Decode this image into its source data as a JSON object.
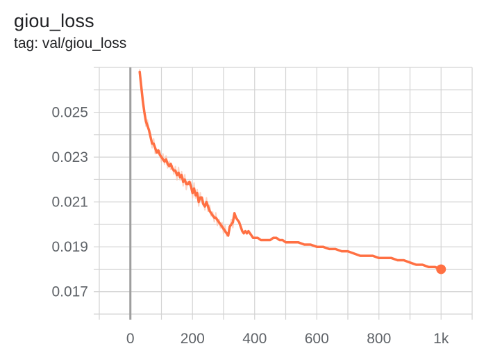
{
  "header": {
    "title": "giou_loss",
    "subtitle": "tag: val/giou_loss"
  },
  "colors": {
    "series": "#ff7043",
    "series_raw": "#f9c2ad",
    "grid": "#d3d3d3",
    "zero_line": "#9e9e9e",
    "tick_text": "#5f6368"
  },
  "chart_data": {
    "type": "line",
    "title": "giou_loss",
    "subtitle": "tag: val/giou_loss",
    "xlabel": "",
    "ylabel": "",
    "xlim": [
      -100,
      1100
    ],
    "ylim": [
      0.016,
      0.027
    ],
    "grid": true,
    "legend": "none",
    "x_ticks": [
      0,
      200,
      400,
      600,
      800,
      1000
    ],
    "x_tick_labels": [
      "0",
      "200",
      "400",
      "600",
      "800",
      "1k"
    ],
    "y_ticks": [
      0.017,
      0.019,
      0.021,
      0.023,
      0.025
    ],
    "y_tick_labels": [
      "0.017",
      "0.019",
      "0.021",
      "0.023",
      "0.025"
    ],
    "series": [
      {
        "x": [
          30,
          40,
          45,
          50,
          55,
          60,
          65,
          70,
          75,
          80,
          85,
          90,
          95,
          100,
          105,
          110,
          115,
          120,
          125,
          130,
          135,
          140,
          145,
          150,
          155,
          160,
          165,
          170,
          175,
          180,
          185,
          190,
          195,
          200,
          205,
          210,
          215,
          220,
          225,
          230,
          235,
          240,
          245,
          250,
          255,
          260,
          265,
          270,
          275,
          280,
          285,
          290,
          295,
          300,
          305,
          310,
          315,
          320,
          325,
          330,
          335,
          340,
          345,
          350,
          355,
          360,
          365,
          370,
          375,
          380,
          385,
          390,
          395,
          400,
          410,
          420,
          430,
          440,
          450,
          460,
          470,
          480,
          490,
          500,
          520,
          540,
          560,
          580,
          600,
          620,
          640,
          660,
          680,
          700,
          720,
          740,
          760,
          780,
          800,
          820,
          840,
          860,
          880,
          900,
          920,
          940,
          960,
          980,
          1000
        ],
        "y": [
          0.0268,
          0.0255,
          0.025,
          0.0246,
          0.0244,
          0.0242,
          0.0239,
          0.0236,
          0.0236,
          0.0234,
          0.0232,
          0.0233,
          0.0231,
          0.023,
          0.0229,
          0.0228,
          0.0229,
          0.0227,
          0.0226,
          0.0227,
          0.0225,
          0.0224,
          0.0224,
          0.0222,
          0.0223,
          0.0221,
          0.0222,
          0.0219,
          0.022,
          0.0218,
          0.0218,
          0.0219,
          0.0217,
          0.0214,
          0.0216,
          0.0213,
          0.0214,
          0.021,
          0.0212,
          0.0212,
          0.0209,
          0.0208,
          0.021,
          0.0208,
          0.0206,
          0.0205,
          0.0204,
          0.0203,
          0.0203,
          0.0202,
          0.0201,
          0.02,
          0.0199,
          0.0198,
          0.0197,
          0.0196,
          0.0195,
          0.0199,
          0.02,
          0.0201,
          0.0205,
          0.0203,
          0.0202,
          0.0201,
          0.0199,
          0.0197,
          0.0196,
          0.0197,
          0.0196,
          0.0197,
          0.0196,
          0.0195,
          0.0194,
          0.0194,
          0.0194,
          0.0193,
          0.0193,
          0.0193,
          0.0193,
          0.0194,
          0.0194,
          0.0193,
          0.0193,
          0.0192,
          0.0192,
          0.0192,
          0.0191,
          0.0191,
          0.019,
          0.019,
          0.0189,
          0.0189,
          0.0188,
          0.0188,
          0.0187,
          0.0186,
          0.0186,
          0.0186,
          0.0185,
          0.0185,
          0.0185,
          0.0184,
          0.0184,
          0.0183,
          0.0182,
          0.0182,
          0.0181,
          0.0181,
          0.018
        ]
      }
    ]
  }
}
